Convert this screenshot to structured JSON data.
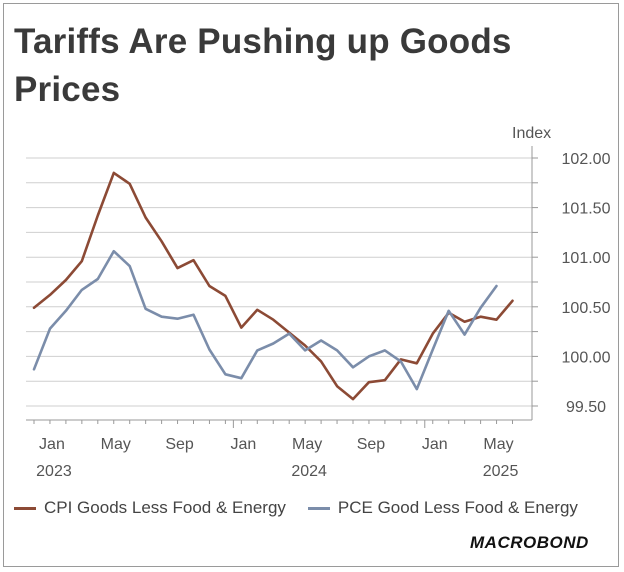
{
  "title": "Tariffs Are Pushing up Goods Prices",
  "logo": "MACROBOND",
  "chart_data": {
    "type": "line",
    "title": "Tariffs Are Pushing up Goods Prices",
    "ylabel": "Index",
    "ylim": [
      99.4,
      102.2
    ],
    "yticks": [
      99.5,
      100.0,
      100.5,
      101.0,
      101.5,
      102.0
    ],
    "ytick_labels": [
      "99.50",
      "100.00",
      "100.50",
      "101.00",
      "101.50",
      "102.00"
    ],
    "xticks": [
      {
        "label": "Jan",
        "year": "2023"
      },
      {
        "label": "May",
        "year": ""
      },
      {
        "label": "Sep",
        "year": ""
      },
      {
        "label": "Jan",
        "year": ""
      },
      {
        "label": "May",
        "year": "2024"
      },
      {
        "label": "Sep",
        "year": ""
      },
      {
        "label": "Jan",
        "year": ""
      },
      {
        "label": "May",
        "year": "2025"
      }
    ],
    "x": [
      "2022-12",
      "2023-01",
      "2023-02",
      "2023-03",
      "2023-04",
      "2023-05",
      "2023-06",
      "2023-07",
      "2023-08",
      "2023-09",
      "2023-10",
      "2023-11",
      "2023-12",
      "2024-01",
      "2024-02",
      "2024-03",
      "2024-04",
      "2024-05",
      "2024-06",
      "2024-07",
      "2024-08",
      "2024-09",
      "2024-10",
      "2024-11",
      "2024-12",
      "2025-01",
      "2025-02",
      "2025-03",
      "2025-04",
      "2025-05",
      "2025-06"
    ],
    "grid": true,
    "legend_position": "bottom",
    "series": [
      {
        "name": "CPI Goods Less Food & Energy",
        "color": "#8c4a35",
        "values": [
          100.49,
          100.62,
          100.77,
          100.96,
          101.42,
          101.85,
          101.74,
          101.4,
          101.16,
          100.89,
          100.97,
          100.71,
          100.61,
          100.29,
          100.47,
          100.37,
          100.24,
          100.11,
          99.95,
          99.7,
          99.57,
          99.74,
          99.76,
          99.97,
          99.93,
          100.23,
          100.44,
          100.35,
          100.4,
          100.37,
          100.56
        ]
      },
      {
        "name": "PCE Good Less Food & Energy",
        "color": "#7b8daa",
        "values": [
          99.87,
          100.28,
          100.46,
          100.67,
          100.78,
          101.06,
          100.91,
          100.48,
          100.4,
          100.38,
          100.42,
          100.07,
          99.82,
          99.78,
          100.06,
          100.13,
          100.23,
          100.06,
          100.16,
          100.06,
          99.89,
          100.0,
          100.06,
          99.95,
          99.67,
          100.07,
          100.46,
          100.22,
          100.49,
          100.71,
          null
        ]
      }
    ]
  }
}
